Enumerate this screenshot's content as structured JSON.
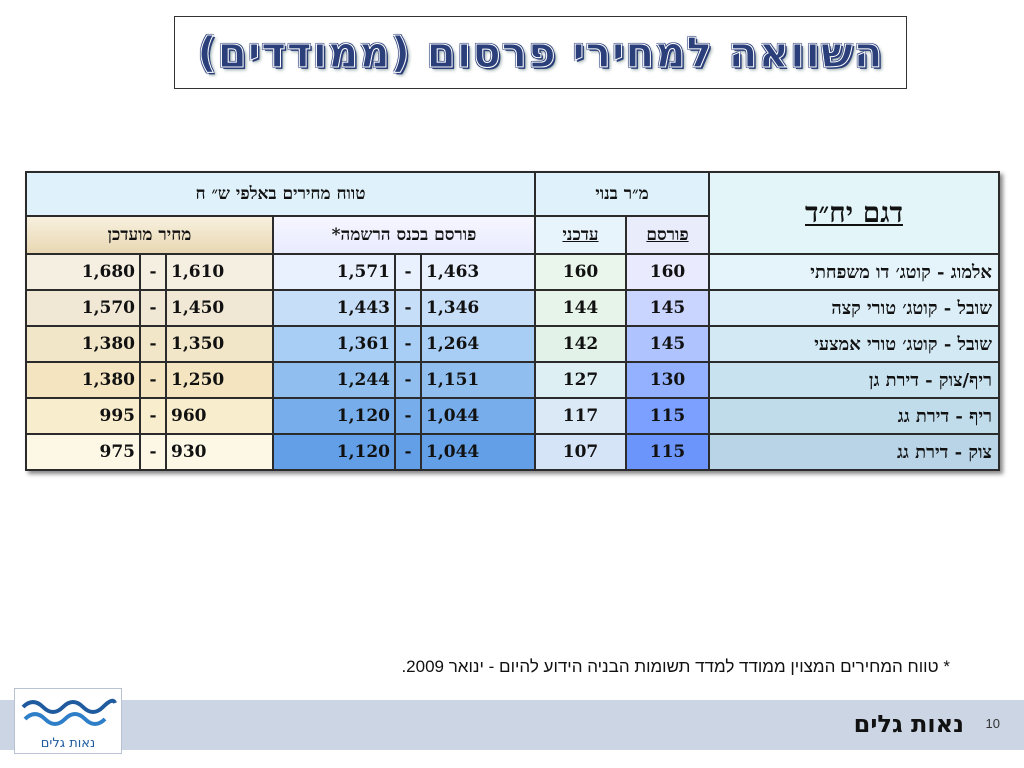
{
  "title": "השוואה למחירי פרסום (ממודדים)",
  "table": {
    "header_model": "דגם יח״ד",
    "header_area": "מ״ר בנוי",
    "header_price_range": "טווח מחירים באלפי ש״ ח",
    "sub_published": "פורסם",
    "sub_updated": "עדכני",
    "sub_pub_knesset": "פורסם בכנס הרשמה*",
    "sub_updated_price": "מחיר מועדכן",
    "rows": [
      {
        "model": "אלמוג - קוטג׳ דו משפחתי",
        "area_pub": "160",
        "area_upd": "160",
        "pub_from": "1,463",
        "dash1": "-",
        "pub_to": "1,571",
        "upd_from": "1,610",
        "dash2": "-",
        "upd_to": "1,680"
      },
      {
        "model": "שובל - קוטג׳ טורי קצה",
        "area_pub": "145",
        "area_upd": "144",
        "pub_from": "1,346",
        "dash1": "-",
        "pub_to": "1,443",
        "upd_from": "1,450",
        "dash2": "-",
        "upd_to": "1,570"
      },
      {
        "model": "שובל - קוטג׳ טורי אמצעי",
        "area_pub": "145",
        "area_upd": "142",
        "pub_from": "1,264",
        "dash1": "-",
        "pub_to": "1,361",
        "upd_from": "1,350",
        "dash2": "-",
        "upd_to": "1,380"
      },
      {
        "model": "ריף/צוק - דירת גן",
        "area_pub": "130",
        "area_upd": "127",
        "pub_from": "1,151",
        "dash1": "-",
        "pub_to": "1,244",
        "upd_from": "1,250",
        "dash2": "-",
        "upd_to": "1,380"
      },
      {
        "model": "ריף - דירת גג",
        "area_pub": "115",
        "area_upd": "117",
        "pub_from": "1,044",
        "dash1": "-",
        "pub_to": "1,120",
        "upd_from": "960",
        "dash2": "-",
        "upd_to": "995"
      },
      {
        "model": "צוק - דירת גג",
        "area_pub": "115",
        "area_upd": "107",
        "pub_from": "1,044",
        "dash1": "-",
        "pub_to": "1,120",
        "upd_from": "930",
        "dash2": "-",
        "upd_to": "975"
      }
    ],
    "row_colors": {
      "model": [
        "#e4f4fa",
        "#dceff8",
        "#d3e9f4",
        "#c9e2ef",
        "#c0dbea",
        "#b8d4e6"
      ],
      "area_pub": [
        "#eaeaff",
        "#c9d4ff",
        "#afc3ff",
        "#94b1ff",
        "#7ba0ff",
        "#6c95fc"
      ],
      "area_upd": [
        "#eaf5ec",
        "#e6f4ea",
        "#e2f2e8",
        "#deeff3",
        "#dae9f5",
        "#d6e4f7"
      ],
      "pub_range": [
        "#e8f1fd",
        "#c6def8",
        "#a9cef5",
        "#90beef",
        "#76adea",
        "#629fe6"
      ],
      "upd_range": [
        "#f5efe2",
        "#f0e8d5",
        "#f1e6c8",
        "#f4e5c0",
        "#f8edcd",
        "#fdf8e6"
      ]
    }
  },
  "footnote": "* טווח המחירים המצוין ממודד למדד תשומות הבניה הידוע להיום  - ינואר 2009.",
  "footer": {
    "brand": "נאות גלים",
    "page_number": "10",
    "logo_text": "נאות גלים"
  }
}
